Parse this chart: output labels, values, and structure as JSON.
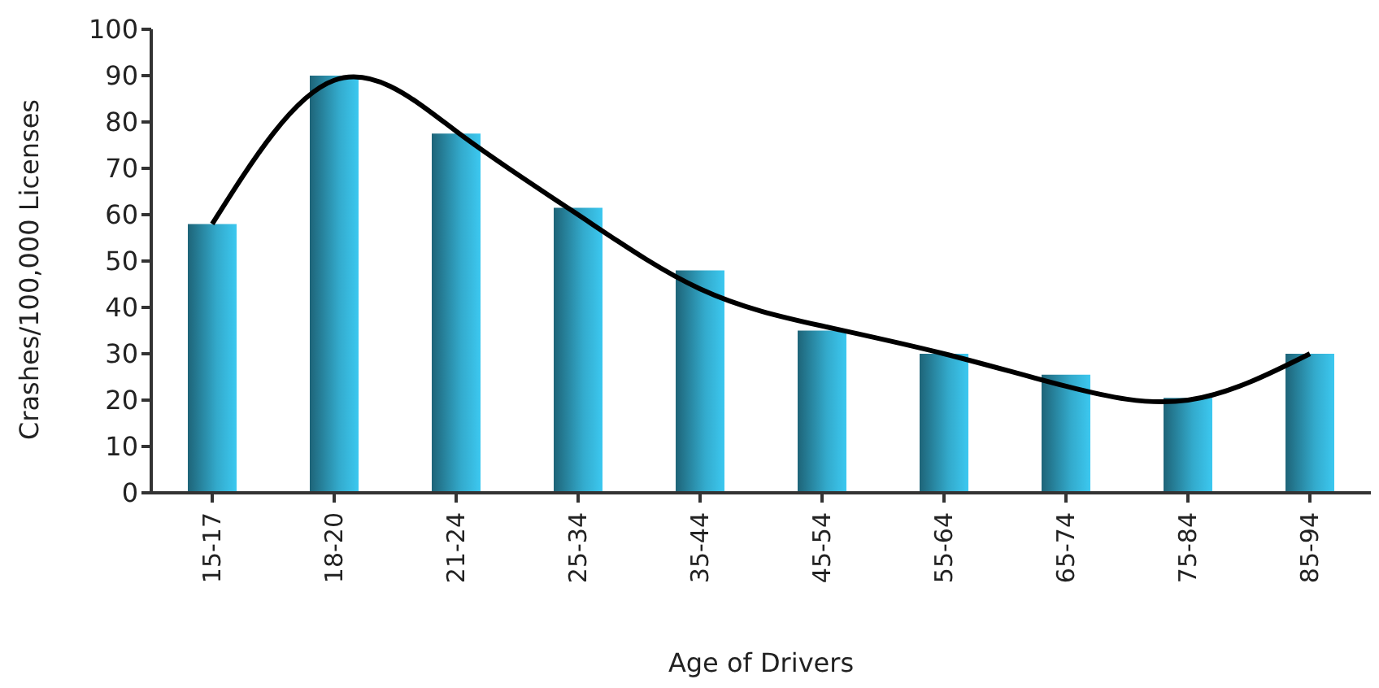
{
  "chart_data": {
    "type": "bar",
    "xlabel": "Age of Drivers",
    "ylabel": "Crashes/100,000 Licenses",
    "categories": [
      "15-17",
      "18-20",
      "21-24",
      "25-34",
      "35-44",
      "45-54",
      "55-64",
      "65-74",
      "75-84",
      "85-94"
    ],
    "series": [
      {
        "color": "#3cc8f0",
        "values": [
          58,
          90,
          77.5,
          61.5,
          48,
          35,
          30,
          25.5,
          20.5,
          30
        ]
      },
      {
        "type": "line",
        "color": "#000000",
        "values": [
          58,
          89,
          78,
          60,
          44,
          36,
          30,
          23,
          20,
          30
        ]
      }
    ],
    "ylim": [
      0,
      100
    ],
    "yticks": [
      0,
      10,
      20,
      30,
      40,
      50,
      60,
      70,
      80,
      90,
      100
    ],
    "grid": false,
    "legend": false,
    "marker": "none",
    "line_style": "solid"
  }
}
